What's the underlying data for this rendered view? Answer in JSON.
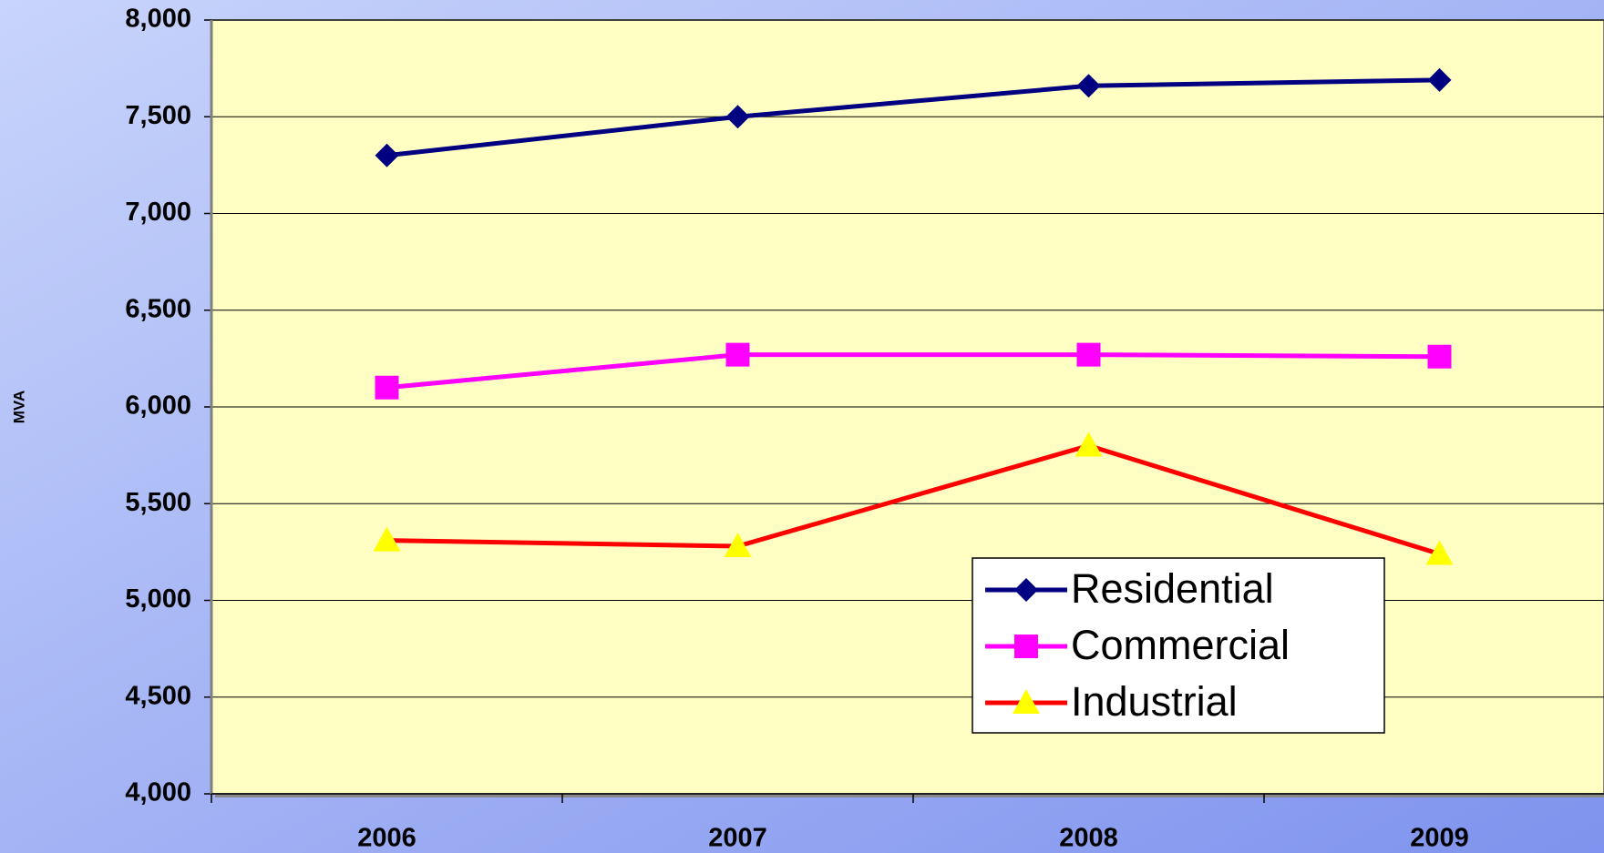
{
  "chart_data": {
    "type": "line",
    "y_label": "MVA",
    "categories": [
      "2006",
      "2007",
      "2008",
      "2009"
    ],
    "series": [
      {
        "name": "Residential",
        "color": "#000080",
        "marker": "diamond",
        "marker_color": "#000080",
        "values": [
          7300,
          7500,
          7660,
          7690
        ]
      },
      {
        "name": "Commercial",
        "color": "#ff00ff",
        "marker": "square",
        "marker_color": "#ff00ff",
        "values": [
          6100,
          6270,
          6270,
          6260
        ]
      },
      {
        "name": "Industrial",
        "color": "#ff0000",
        "marker": "triangle",
        "marker_color": "#ffff00",
        "values": [
          5310,
          5280,
          5800,
          5240
        ]
      }
    ],
    "ylim": [
      4000,
      8000
    ],
    "yticks": [
      {
        "value": 4000,
        "label": "4,000"
      },
      {
        "value": 4500,
        "label": "4,500"
      },
      {
        "value": 5000,
        "label": "5,000"
      },
      {
        "value": 5500,
        "label": "5,500"
      },
      {
        "value": 6000,
        "label": "6,000"
      },
      {
        "value": 6500,
        "label": "6,500"
      },
      {
        "value": 7000,
        "label": "7,000"
      },
      {
        "value": 7500,
        "label": "7,500"
      },
      {
        "value": 8000,
        "label": "8,000"
      }
    ],
    "grid": true,
    "legend": "lower right"
  }
}
